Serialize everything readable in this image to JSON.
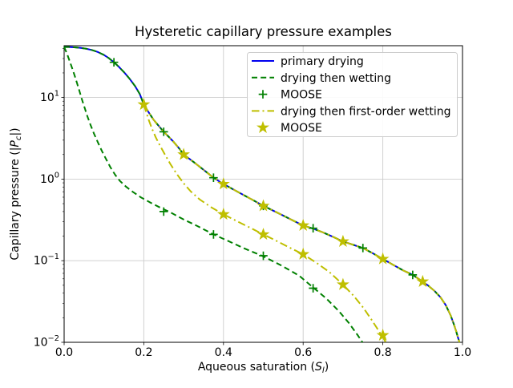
{
  "figure": {
    "title": "Hysteretic capillary pressure examples"
  },
  "chart_data": {
    "type": "line",
    "title": "Hysteretic capillary pressure examples",
    "xlabel": "Aqueous saturation (S_l)",
    "ylabel": "Capillary pressure (|P_c|)",
    "xlim": [
      0.0,
      1.0
    ],
    "ylim": [
      0.01,
      43.0
    ],
    "yscale": "log",
    "grid": true,
    "legend_position": "upper right",
    "colors": {
      "blue": "#0000ee",
      "green": "#008000",
      "yellow": "#bfbf00",
      "grid": "#cccccc",
      "spine": "#000000",
      "legend_border": "#cccccc",
      "background": "#ffffff"
    },
    "xticks": [
      {
        "value": 0.0,
        "label": "0.0"
      },
      {
        "value": 0.2,
        "label": "0.2"
      },
      {
        "value": 0.4,
        "label": "0.4"
      },
      {
        "value": 0.6,
        "label": "0.6"
      },
      {
        "value": 0.8,
        "label": "0.8"
      },
      {
        "value": 1.0,
        "label": "1.0"
      }
    ],
    "yticks": [
      {
        "exp": 1,
        "label": "10^1"
      },
      {
        "exp": 0,
        "label": "10^0"
      },
      {
        "exp": -1,
        "label": "10^-1"
      },
      {
        "exp": -2,
        "label": "10^-2"
      }
    ],
    "series": [
      {
        "name": "primary drying",
        "color": "blue",
        "style": "solid",
        "role": "curve",
        "points": [
          [
            0.0,
            41.6
          ],
          [
            0.012,
            41.5
          ],
          [
            0.025,
            41.2
          ],
          [
            0.04,
            40.6
          ],
          [
            0.055,
            39.6
          ],
          [
            0.07,
            38.1
          ],
          [
            0.085,
            36.0
          ],
          [
            0.1,
            33.2
          ],
          [
            0.112,
            30.4
          ],
          [
            0.125,
            27.0
          ],
          [
            0.138,
            23.6
          ],
          [
            0.152,
            20.0
          ],
          [
            0.165,
            16.8
          ],
          [
            0.178,
            13.8
          ],
          [
            0.19,
            11.0
          ],
          [
            0.2,
            8.2
          ],
          [
            0.212,
            6.6
          ],
          [
            0.225,
            5.3
          ],
          [
            0.238,
            4.45
          ],
          [
            0.25,
            3.8
          ],
          [
            0.263,
            3.28
          ],
          [
            0.275,
            2.85
          ],
          [
            0.288,
            2.4
          ],
          [
            0.3,
            2.0
          ],
          [
            0.325,
            1.62
          ],
          [
            0.35,
            1.3
          ],
          [
            0.375,
            1.04
          ],
          [
            0.4,
            0.87
          ],
          [
            0.425,
            0.745
          ],
          [
            0.45,
            0.64
          ],
          [
            0.475,
            0.55
          ],
          [
            0.5,
            0.47
          ],
          [
            0.525,
            0.41
          ],
          [
            0.55,
            0.357
          ],
          [
            0.575,
            0.31
          ],
          [
            0.6,
            0.27
          ],
          [
            0.625,
            0.247
          ],
          [
            0.65,
            0.222
          ],
          [
            0.675,
            0.196
          ],
          [
            0.7,
            0.172
          ],
          [
            0.725,
            0.157
          ],
          [
            0.75,
            0.143
          ],
          [
            0.775,
            0.123
          ],
          [
            0.8,
            0.105
          ],
          [
            0.825,
            0.0895
          ],
          [
            0.85,
            0.0765
          ],
          [
            0.875,
            0.067
          ],
          [
            0.9,
            0.0555
          ],
          [
            0.915,
            0.049
          ],
          [
            0.93,
            0.0425
          ],
          [
            0.945,
            0.0355
          ],
          [
            0.958,
            0.0285
          ],
          [
            0.97,
            0.0215
          ],
          [
            0.978,
            0.0168
          ],
          [
            0.984,
            0.0137
          ],
          [
            0.989,
            0.0113
          ],
          [
            0.9925,
            0.01
          ]
        ]
      },
      {
        "name": "drying then wetting",
        "color": "green",
        "style": "dashed",
        "role": "curve",
        "overlay_primary_from": 0.0,
        "points": [
          [
            0.0,
            41.6
          ],
          [
            0.004,
            37.5
          ],
          [
            0.009,
            32.5
          ],
          [
            0.014,
            27.8
          ],
          [
            0.02,
            23.0
          ],
          [
            0.026,
            18.8
          ],
          [
            0.032,
            15.2
          ],
          [
            0.038,
            12.2
          ],
          [
            0.044,
            9.7
          ],
          [
            0.051,
            7.6
          ],
          [
            0.058,
            5.95
          ],
          [
            0.066,
            4.65
          ],
          [
            0.075,
            3.6
          ],
          [
            0.085,
            2.8
          ],
          [
            0.095,
            2.2
          ],
          [
            0.105,
            1.77
          ],
          [
            0.116,
            1.4
          ],
          [
            0.128,
            1.13
          ],
          [
            0.14,
            0.95
          ],
          [
            0.155,
            0.81
          ],
          [
            0.172,
            0.7
          ],
          [
            0.192,
            0.6
          ],
          [
            0.215,
            0.52
          ],
          [
            0.24,
            0.45
          ],
          [
            0.265,
            0.395
          ],
          [
            0.3,
            0.32
          ],
          [
            0.335,
            0.265
          ],
          [
            0.375,
            0.21
          ],
          [
            0.41,
            0.176
          ],
          [
            0.45,
            0.143
          ],
          [
            0.5,
            0.113
          ],
          [
            0.545,
            0.0875
          ],
          [
            0.59,
            0.0655
          ],
          [
            0.625,
            0.047
          ],
          [
            0.658,
            0.0345
          ],
          [
            0.69,
            0.024
          ],
          [
            0.715,
            0.0172
          ],
          [
            0.736,
            0.0124
          ],
          [
            0.749,
            0.01
          ]
        ]
      },
      {
        "name": "MOOSE",
        "color": "green",
        "marker": "plus",
        "role": "markers",
        "points": [
          [
            0.125,
            27.0
          ],
          [
            0.25,
            3.8
          ],
          [
            0.375,
            1.04
          ],
          [
            0.5,
            0.47
          ],
          [
            0.625,
            0.25
          ],
          [
            0.75,
            0.143
          ],
          [
            0.875,
            0.067
          ],
          [
            0.25,
            0.4
          ],
          [
            0.375,
            0.21
          ],
          [
            0.5,
            0.115
          ],
          [
            0.625,
            0.046
          ]
        ]
      },
      {
        "name": "drying then first-order wetting",
        "color": "yellow",
        "style": "dashdot",
        "role": "curve",
        "overlay_primary_from": 0.2,
        "points": [
          [
            0.2,
            8.2
          ],
          [
            0.206,
            6.6
          ],
          [
            0.213,
            5.2
          ],
          [
            0.221,
            4.1
          ],
          [
            0.23,
            3.25
          ],
          [
            0.241,
            2.55
          ],
          [
            0.253,
            2.0
          ],
          [
            0.267,
            1.52
          ],
          [
            0.282,
            1.17
          ],
          [
            0.299,
            0.9
          ],
          [
            0.318,
            0.705
          ],
          [
            0.34,
            0.565
          ],
          [
            0.368,
            0.455
          ],
          [
            0.4,
            0.37
          ],
          [
            0.435,
            0.303
          ],
          [
            0.468,
            0.252
          ],
          [
            0.5,
            0.21
          ],
          [
            0.535,
            0.173
          ],
          [
            0.568,
            0.143
          ],
          [
            0.6,
            0.12
          ],
          [
            0.633,
            0.0945
          ],
          [
            0.666,
            0.0725
          ],
          [
            0.7,
            0.051
          ],
          [
            0.727,
            0.037
          ],
          [
            0.751,
            0.0265
          ],
          [
            0.772,
            0.0188
          ],
          [
            0.789,
            0.014
          ],
          [
            0.801,
            0.0113
          ],
          [
            0.807,
            0.0101
          ]
        ]
      },
      {
        "name": "MOOSE",
        "color": "yellow",
        "marker": "star",
        "role": "markers",
        "points": [
          [
            0.2,
            8.2
          ],
          [
            0.3,
            2.0
          ],
          [
            0.4,
            0.87
          ],
          [
            0.5,
            0.47
          ],
          [
            0.6,
            0.27
          ],
          [
            0.7,
            0.172
          ],
          [
            0.8,
            0.105
          ],
          [
            0.9,
            0.0555
          ],
          [
            0.4,
            0.37
          ],
          [
            0.5,
            0.21
          ],
          [
            0.6,
            0.12
          ],
          [
            0.7,
            0.051
          ],
          [
            0.8,
            0.0122
          ]
        ]
      }
    ]
  }
}
